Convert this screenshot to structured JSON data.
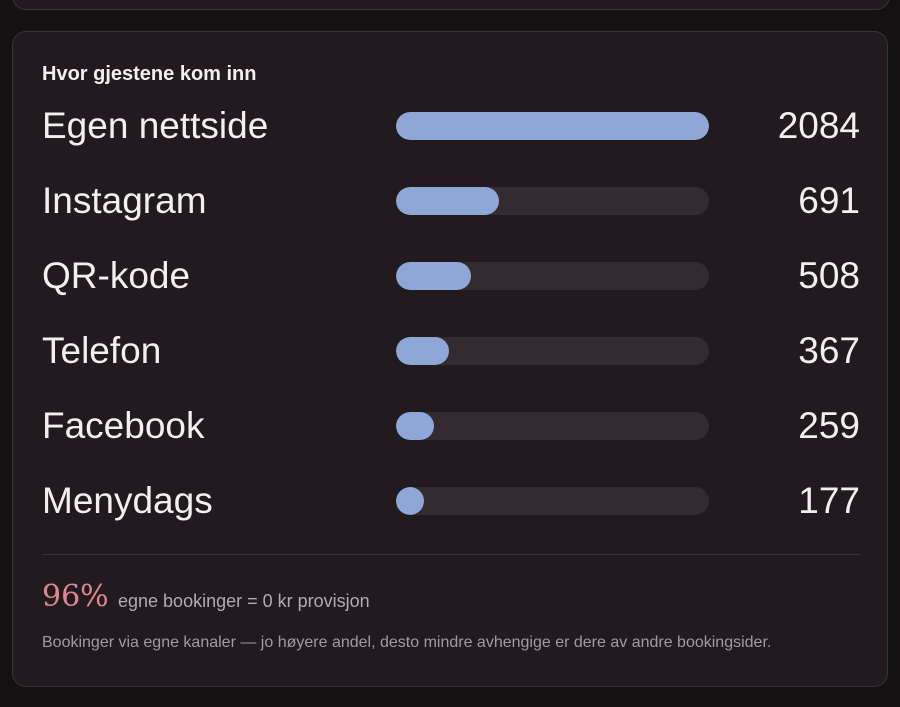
{
  "card": {
    "title": "Hvor gjestene kom inn",
    "channels": [
      {
        "label": "Egen nettside",
        "value": "2084",
        "share": 1.0
      },
      {
        "label": "Instagram",
        "value": "691",
        "share": 0.33
      },
      {
        "label": "QR-kode",
        "value": "508",
        "share": 0.24
      },
      {
        "label": "Telefon",
        "value": "367",
        "share": 0.17
      },
      {
        "label": "Facebook",
        "value": "259",
        "share": 0.12
      },
      {
        "label": "Menydags",
        "value": "177",
        "share": 0.085
      }
    ],
    "own_share_percent": "96%",
    "own_share_text": "egne bookinger = 0 kr provisjon",
    "footnote": "Bookinger via egne kanaler — jo høyere andel, desto mindre avhengige er dere av andre bookingsider."
  },
  "colors": {
    "bar_fill": "#8ea7d6",
    "bar_track": "#332b30",
    "accent": "#e0868f",
    "card_bg": "#211b1f"
  }
}
